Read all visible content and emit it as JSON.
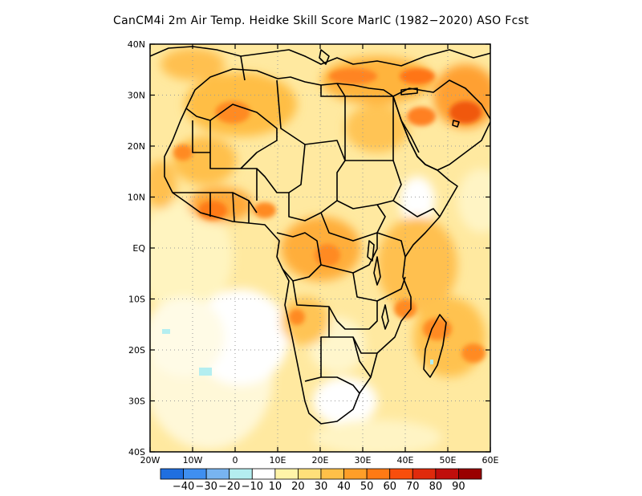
{
  "title": "CanCM4i  2m Air Temp. Heidke Skill Score MarIC (1982−2020) ASO Fcst",
  "lat_axis": {
    "ticks": [
      {
        "value": 40,
        "label": "40N"
      },
      {
        "value": 30,
        "label": "30N"
      },
      {
        "value": 20,
        "label": "20N"
      },
      {
        "value": 10,
        "label": "10N"
      },
      {
        "value": 0,
        "label": "EQ"
      },
      {
        "value": -10,
        "label": "10S"
      },
      {
        "value": -20,
        "label": "20S"
      },
      {
        "value": -30,
        "label": "30S"
      },
      {
        "value": -40,
        "label": "40S"
      }
    ],
    "range": [
      -40,
      40
    ]
  },
  "lon_axis": {
    "ticks": [
      {
        "value": -20,
        "label": "20W"
      },
      {
        "value": -10,
        "label": "10W"
      },
      {
        "value": 0,
        "label": "0"
      },
      {
        "value": 10,
        "label": "10E"
      },
      {
        "value": 20,
        "label": "20E"
      },
      {
        "value": 30,
        "label": "30E"
      },
      {
        "value": 40,
        "label": "40E"
      },
      {
        "value": 50,
        "label": "50E"
      },
      {
        "value": 60,
        "label": "60E"
      }
    ],
    "range": [
      -20,
      60
    ]
  },
  "colorbar": {
    "colors": [
      "#1f6fe0",
      "#3f8ff0",
      "#78b4f0",
      "#b4eef0",
      "#ffffff",
      "#fff4a8",
      "#ffe07a",
      "#ffc048",
      "#ff9e28",
      "#ff7a14",
      "#f84e0c",
      "#e02a0c",
      "#c00e0c",
      "#9a0000"
    ],
    "labels": [
      "−40",
      "−30",
      "−20",
      "−10",
      "10",
      "20",
      "30",
      "40",
      "50",
      "60",
      "70",
      "80",
      "90"
    ]
  },
  "grid": true,
  "colors": {
    "frame": "#000000",
    "gridline": "#9a9a9a",
    "border": "#000000"
  }
}
